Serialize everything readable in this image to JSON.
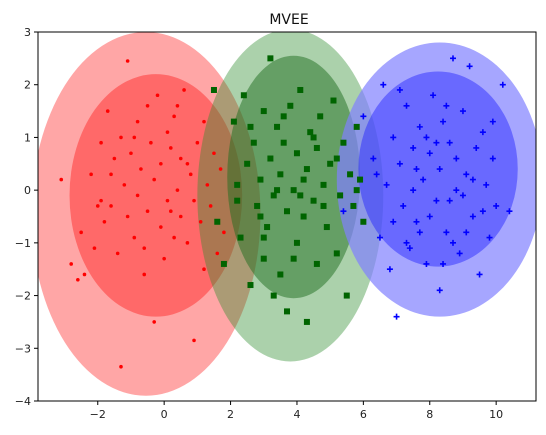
{
  "chart_data": {
    "type": "scatter",
    "title": "MVEE",
    "xlabel": "",
    "ylabel": "",
    "xlim": [
      -3.8,
      11.2
    ],
    "ylim": [
      -4,
      3
    ],
    "xticks": [
      -2,
      0,
      2,
      4,
      6,
      8,
      10
    ],
    "yticks": [
      -4,
      -3,
      -2,
      -1,
      0,
      1,
      2,
      3
    ],
    "grid": false,
    "series": [
      {
        "color": "#ff0000",
        "marker": "dot",
        "ellipse_outer": {
          "cx": -0.55,
          "cy": -0.45,
          "rx": 3.45,
          "ry": 3.45,
          "color": "#ff8080",
          "opacity": 0.7
        },
        "ellipse_inner": {
          "cx": -0.25,
          "cy": -0.1,
          "rx": 2.6,
          "ry": 2.3,
          "color": "#ff2020",
          "opacity": 0.45
        },
        "points": [
          [
            -3.1,
            0.2
          ],
          [
            -2.8,
            -1.4
          ],
          [
            -2.6,
            -1.7
          ],
          [
            -2.5,
            -0.8
          ],
          [
            -2.4,
            -1.6
          ],
          [
            -2.2,
            0.3
          ],
          [
            -2.1,
            -1.1
          ],
          [
            -1.9,
            0.9
          ],
          [
            -1.8,
            -0.6
          ],
          [
            -1.7,
            1.5
          ],
          [
            -1.6,
            -0.3
          ],
          [
            -1.5,
            0.6
          ],
          [
            -1.4,
            -1.2
          ],
          [
            -1.3,
            1.0
          ],
          [
            -1.3,
            -3.35
          ],
          [
            -1.2,
            0.1
          ],
          [
            -1.1,
            -0.5
          ],
          [
            -1.1,
            2.45
          ],
          [
            -1.0,
            0.7
          ],
          [
            -0.9,
            -0.9
          ],
          [
            -0.8,
            1.3
          ],
          [
            -0.8,
            -0.1
          ],
          [
            -0.7,
            0.4
          ],
          [
            -0.6,
            -1.6
          ],
          [
            -0.5,
            1.6
          ],
          [
            -0.5,
            -0.4
          ],
          [
            -0.4,
            0.9
          ],
          [
            -0.3,
            -2.5
          ],
          [
            -0.3,
            0.2
          ],
          [
            -0.2,
            1.8
          ],
          [
            -0.1,
            -0.7
          ],
          [
            -0.1,
            0.5
          ],
          [
            0.0,
            -1.3
          ],
          [
            0.1,
            1.1
          ],
          [
            0.1,
            -0.2
          ],
          [
            0.2,
            0.8
          ],
          [
            0.3,
            -0.9
          ],
          [
            0.3,
            1.4
          ],
          [
            0.4,
            0.0
          ],
          [
            0.5,
            -0.5
          ],
          [
            0.5,
            0.6
          ],
          [
            0.6,
            1.9
          ],
          [
            0.7,
            -1.0
          ],
          [
            0.8,
            0.3
          ],
          [
            0.9,
            -0.2
          ],
          [
            0.9,
            -2.85
          ],
          [
            1.0,
            0.9
          ],
          [
            1.1,
            -0.6
          ],
          [
            1.2,
            1.3
          ],
          [
            1.3,
            0.1
          ],
          [
            1.4,
            -0.3
          ],
          [
            1.5,
            0.7
          ],
          [
            1.6,
            -1.2
          ],
          [
            1.7,
            0.4
          ],
          [
            1.8,
            -0.8
          ],
          [
            -1.9,
            -0.2
          ],
          [
            -0.6,
            -1.1
          ],
          [
            0.2,
            -0.4
          ],
          [
            -1.6,
            0.3
          ],
          [
            0.7,
            0.5
          ],
          [
            1.2,
            -1.5
          ],
          [
            -2.0,
            -0.3
          ],
          [
            0.4,
            1.6
          ],
          [
            -0.9,
            1.0
          ]
        ]
      },
      {
        "color": "#006400",
        "marker": "square",
        "ellipse_outer": {
          "cx": 3.8,
          "cy": -0.1,
          "rx": 2.8,
          "ry": 3.15,
          "color": "#2e8b2e",
          "opacity": 0.4
        },
        "ellipse_inner": {
          "cx": 3.9,
          "cy": 0.25,
          "rx": 2.0,
          "ry": 2.3,
          "color": "#1f6e1f",
          "opacity": 0.5
        },
        "points": [
          [
            1.5,
            1.9
          ],
          [
            1.6,
            -0.6
          ],
          [
            1.8,
            -1.4
          ],
          [
            2.1,
            1.3
          ],
          [
            2.2,
            0.1
          ],
          [
            2.3,
            -0.9
          ],
          [
            2.4,
            1.8
          ],
          [
            2.5,
            0.5
          ],
          [
            2.6,
            -1.8
          ],
          [
            2.7,
            0.9
          ],
          [
            2.8,
            -0.3
          ],
          [
            2.9,
            0.2
          ],
          [
            3.0,
            -1.3
          ],
          [
            3.0,
            1.5
          ],
          [
            3.1,
            -0.7
          ],
          [
            3.2,
            0.6
          ],
          [
            3.2,
            2.5
          ],
          [
            3.3,
            -0.1
          ],
          [
            3.4,
            1.2
          ],
          [
            3.5,
            -1.6
          ],
          [
            3.5,
            0.3
          ],
          [
            3.6,
            0.9
          ],
          [
            3.7,
            -0.4
          ],
          [
            3.7,
            -2.3
          ],
          [
            3.8,
            1.6
          ],
          [
            3.9,
            0.0
          ],
          [
            4.0,
            -1.0
          ],
          [
            4.0,
            0.7
          ],
          [
            4.1,
            1.9
          ],
          [
            4.2,
            -0.5
          ],
          [
            4.3,
            0.4
          ],
          [
            4.3,
            -2.5
          ],
          [
            4.4,
            1.1
          ],
          [
            4.5,
            -0.2
          ],
          [
            4.6,
            0.8
          ],
          [
            4.6,
            -1.4
          ],
          [
            4.7,
            1.4
          ],
          [
            4.8,
            0.1
          ],
          [
            4.9,
            -0.7
          ],
          [
            5.0,
            0.5
          ],
          [
            5.1,
            1.7
          ],
          [
            5.2,
            -1.2
          ],
          [
            5.3,
            -0.1
          ],
          [
            5.4,
            0.9
          ],
          [
            5.5,
            -2.0
          ],
          [
            5.6,
            0.3
          ],
          [
            5.7,
            -0.3
          ],
          [
            5.8,
            1.2
          ],
          [
            5.9,
            0.2
          ],
          [
            6.0,
            -0.6
          ],
          [
            2.6,
            1.2
          ],
          [
            3.0,
            -0.9
          ],
          [
            4.1,
            -0.1
          ],
          [
            3.6,
            1.4
          ],
          [
            4.8,
            -0.3
          ],
          [
            5.2,
            0.6
          ],
          [
            2.9,
            -0.5
          ],
          [
            3.9,
            -1.3
          ],
          [
            4.5,
            1.0
          ],
          [
            3.4,
            0.0
          ],
          [
            4.2,
            0.2
          ],
          [
            2.2,
            -0.2
          ],
          [
            5.8,
            0.0
          ],
          [
            3.3,
            -2.0
          ]
        ]
      },
      {
        "color": "#0000ff",
        "marker": "plus",
        "ellipse_outer": {
          "cx": 8.3,
          "cy": 0.2,
          "rx": 3.1,
          "ry": 2.6,
          "color": "#8080ff",
          "opacity": 0.7
        },
        "ellipse_inner": {
          "cx": 8.25,
          "cy": 0.4,
          "rx": 2.4,
          "ry": 1.85,
          "color": "#2020ff",
          "opacity": 0.45
        },
        "points": [
          [
            5.4,
            -0.4
          ],
          [
            6.0,
            1.4
          ],
          [
            6.3,
            0.6
          ],
          [
            6.5,
            -0.9
          ],
          [
            6.6,
            2.0
          ],
          [
            6.7,
            0.1
          ],
          [
            6.8,
            -1.5
          ],
          [
            6.9,
            1.0
          ],
          [
            7.0,
            -2.4
          ],
          [
            7.1,
            0.5
          ],
          [
            7.2,
            -0.3
          ],
          [
            7.3,
            1.6
          ],
          [
            7.4,
            -1.1
          ],
          [
            7.5,
            0.8
          ],
          [
            7.6,
            -0.6
          ],
          [
            7.7,
            1.2
          ],
          [
            7.8,
            0.2
          ],
          [
            7.9,
            -1.4
          ],
          [
            8.0,
            0.7
          ],
          [
            8.1,
            1.8
          ],
          [
            8.2,
            -0.2
          ],
          [
            8.3,
            0.4
          ],
          [
            8.3,
            -1.9
          ],
          [
            8.4,
            1.3
          ],
          [
            8.5,
            -0.8
          ],
          [
            8.6,
            0.9
          ],
          [
            8.7,
            2.5
          ],
          [
            8.8,
            0.0
          ],
          [
            8.9,
            -1.2
          ],
          [
            9.0,
            1.5
          ],
          [
            9.1,
            0.3
          ],
          [
            9.2,
            2.35
          ],
          [
            9.3,
            -0.5
          ],
          [
            9.4,
            0.8
          ],
          [
            9.5,
            -1.6
          ],
          [
            9.6,
            1.1
          ],
          [
            9.7,
            0.1
          ],
          [
            9.8,
            -0.9
          ],
          [
            9.9,
            0.6
          ],
          [
            10.0,
            -0.3
          ],
          [
            10.2,
            2.0
          ],
          [
            10.4,
            -0.4
          ],
          [
            7.3,
            -1.0
          ],
          [
            8.0,
            -0.5
          ],
          [
            8.6,
            -0.2
          ],
          [
            7.6,
            0.4
          ],
          [
            9.1,
            -0.8
          ],
          [
            8.8,
            0.6
          ],
          [
            7.1,
            1.9
          ],
          [
            8.4,
            -1.4
          ],
          [
            9.6,
            -0.4
          ],
          [
            7.9,
            1.0
          ],
          [
            6.9,
            -0.6
          ],
          [
            8.2,
            0.9
          ],
          [
            9.3,
            0.2
          ],
          [
            7.5,
            0.0
          ],
          [
            8.7,
            -1.0
          ],
          [
            6.4,
            0.3
          ],
          [
            9.9,
            1.3
          ],
          [
            7.7,
            -0.8
          ],
          [
            8.5,
            1.6
          ],
          [
            9.0,
            -0.1
          ]
        ]
      }
    ]
  }
}
